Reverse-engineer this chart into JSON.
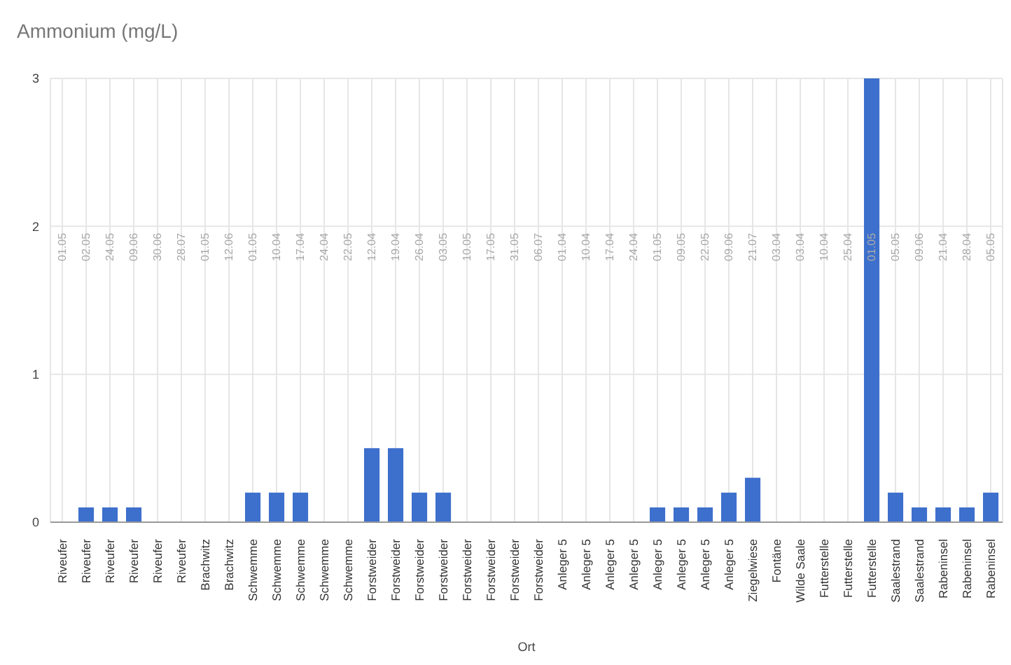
{
  "chart_data": {
    "type": "bar",
    "title": "Ammonium (mg/L)",
    "xlabel": "Ort",
    "categories": [
      "Riveufer",
      "Riveufer",
      "Riveufer",
      "Riveufer",
      "Riveufer",
      "Riveufer",
      "Brachwitz",
      "Brachwitz",
      "Schwemme",
      "Schwemme",
      "Schwemme",
      "Schwemme",
      "Schwemme",
      "Forstweider",
      "Forstweider",
      "Forstweider",
      "Forstweider",
      "Forstweider",
      "Forstweider",
      "Forstweider",
      "Forstweider",
      "Anleger 5",
      "Anleger 5",
      "Anleger 5",
      "Anleger 5",
      "Anleger 5",
      "Anleger 5",
      "Anleger 5",
      "Anleger 5",
      "Ziegelwiese",
      "Fontäne",
      "Wilde Saale",
      "Futterstelle",
      "Futterstelle",
      "Futterstelle",
      "Saalestrand",
      "Saalestrand",
      "Rabeninsel",
      "Rabeninsel",
      "Rabeninsel"
    ],
    "values": [
      0,
      0.1,
      0.1,
      0.1,
      0,
      0,
      0,
      0,
      0.2,
      0.2,
      0.2,
      0,
      0,
      0.5,
      0.5,
      0.2,
      0.2,
      0,
      0,
      0,
      0,
      0,
      0,
      0,
      0,
      0.1,
      0.1,
      0.1,
      0.2,
      0.3,
      0,
      0,
      0,
      0,
      3,
      0.2,
      0.1,
      0.1,
      0.1,
      0.2
    ],
    "color": "#3d6fcc",
    "annotations": [
      "01.05",
      "02.05",
      "24.05",
      "09.06",
      "30.06",
      "28.07",
      "01.05",
      "12.06",
      "01.05",
      "10.04",
      "17.04",
      "24.04",
      "22.05",
      "12.04",
      "19.04",
      "26.04",
      "03.05",
      "10.05",
      "17.05",
      "31.05",
      "06.07",
      "01.04",
      "10.04",
      "17.04",
      "24.04",
      "01.05",
      "09.05",
      "22.05",
      "09.06",
      "21.07",
      "03.04",
      "03.04",
      "10.04",
      "25.04",
      "01.05",
      "05.05",
      "09.06",
      "21.04",
      "28.04",
      "05.05"
    ],
    "ylim": [
      0,
      3
    ],
    "yticks": [
      0,
      1,
      2,
      3
    ],
    "grid": true
  }
}
